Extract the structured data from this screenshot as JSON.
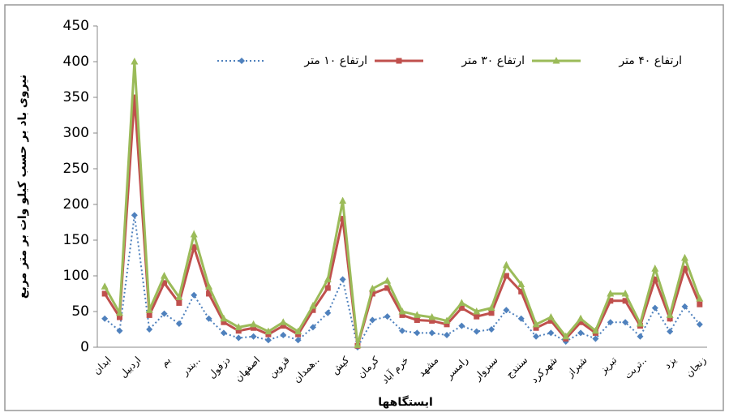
{
  "chart_data": {
    "type": "line",
    "y_label": "نیروی باد بر حسب کیلو وات بر متر مربع",
    "x_label": "ایستگاهها",
    "categories": [
      "ابدان",
      null,
      "اردبیل",
      null,
      "بم",
      null,
      "بندر..",
      null,
      "دزفول",
      null,
      "اصفهان",
      null,
      "قزوین",
      null,
      "همدان..",
      null,
      "کیش",
      null,
      "کرمان",
      null,
      "خرم آباد",
      null,
      "مشهد",
      null,
      "رامسر",
      null,
      "سبزوار",
      null,
      "سنندج",
      null,
      "شهرکرد",
      null,
      "شیراز",
      null,
      "تبریز",
      null,
      "تربت..",
      null,
      "یزد",
      null,
      "زنجان"
    ],
    "series": [
      {
        "name": "ارتفاع ۱۰ متر",
        "color": "#4f81bd",
        "marker": "diamond",
        "dash": true,
        "values": [
          40,
          23,
          185,
          25,
          47,
          33,
          73,
          40,
          20,
          13,
          15,
          10,
          17,
          10,
          28,
          48,
          95,
          0,
          38,
          43,
          23,
          20,
          20,
          17,
          30,
          22,
          25,
          52,
          40,
          15,
          20,
          8,
          20,
          12,
          35,
          35,
          15,
          55,
          22,
          57,
          32
        ]
      },
      {
        "name": "ارتفاع ۳۰ متر",
        "color": "#c0504d",
        "marker": "square",
        "dash": false,
        "values": [
          75,
          42,
          350,
          45,
          90,
          62,
          140,
          75,
          35,
          23,
          27,
          18,
          30,
          18,
          52,
          83,
          180,
          2,
          75,
          83,
          45,
          38,
          37,
          32,
          55,
          43,
          48,
          100,
          78,
          27,
          37,
          12,
          35,
          20,
          65,
          65,
          30,
          95,
          40,
          110,
          60
        ]
      },
      {
        "name": "ارتفاع ۴۰ متر",
        "color": "#9bbb59",
        "marker": "triangle",
        "dash": false,
        "values": [
          85,
          48,
          400,
          52,
          100,
          70,
          158,
          85,
          40,
          28,
          32,
          22,
          35,
          22,
          58,
          95,
          205,
          3,
          82,
          93,
          50,
          45,
          42,
          37,
          62,
          50,
          55,
          115,
          88,
          32,
          42,
          15,
          40,
          23,
          75,
          75,
          33,
          110,
          45,
          125,
          68
        ]
      }
    ],
    "ylim": [
      0,
      450
    ],
    "yticks": [
      0,
      50,
      100,
      150,
      200,
      250,
      300,
      350,
      400,
      450
    ],
    "grid": false
  }
}
